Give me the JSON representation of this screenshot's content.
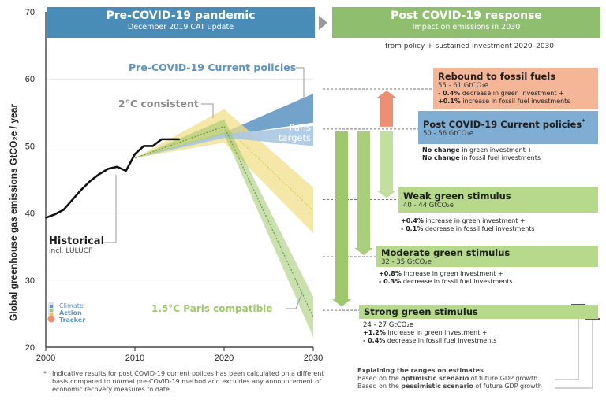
{
  "colors": {
    "header_left": "#4a8cb8",
    "header_right": "#8fbf6e",
    "historical": "#111111",
    "current_policies": "#5b93c2",
    "two_degree": "#f0df8a",
    "paris": "#9fc76d",
    "rebound_box": "#f5b597",
    "current_box": "#80aed3",
    "green_box": "#b6d98b",
    "arrow_green": "#9fc76d",
    "arrow_red": "#ee8f73"
  },
  "headers": {
    "left": {
      "title": "Pre-COVID-19 pandemic",
      "subtitle": "December 2019 CAT update"
    },
    "right": {
      "title": "Post COVID-19 response",
      "subtitle": "Impact on emissions in 2030"
    },
    "right_note": "from policy + sustained investment 2020–2030"
  },
  "labels": {
    "current_policies": "Pre-COVID-19 Current policies",
    "two_degree": "2°C consistent",
    "paris_targets_1": "Paris",
    "paris_targets_2": "targets",
    "historical": "Historical",
    "historical_sub": "incl. LULUCF",
    "paris_compatible": "1.5°C Paris compatible",
    "logo_1": "Climate",
    "logo_2": "Action",
    "logo_3": "Tracker"
  },
  "boxes": {
    "rebound": {
      "title": "Rebound to fossil fuels",
      "range": "55 - 61  GtCO₂e",
      "line1_bold": "- 0.4%",
      "line1_rest": " decrease in green investment +",
      "line2_bold": "+0.1%",
      "line2_rest": " increase in fossil fuel investments"
    },
    "current": {
      "title": "Post COVID-19 Current policies",
      "star": "*",
      "range": "50 - 56  GtCO₂e",
      "line1_bold": "No change",
      "line1_rest": " in green investment +",
      "line2_bold": "No change",
      "line2_rest": " in fossil fuel investments"
    },
    "weak": {
      "title": "Weak green stimulus",
      "range": "40 - 44  GtCO₂e",
      "line1_bold": "+0.4%",
      "line1_rest": " increase in green investment +",
      "line2_bold": "- 0.1%",
      "line2_rest": " decrease in fossil fuel investments"
    },
    "moderate": {
      "title": "Moderate green stimulus",
      "range": "32 - 35  GtCO₂e",
      "line1_bold": "+0.8%",
      "line1_rest": " increase in green investment +",
      "line2_bold": "- 0.3%",
      "line2_rest": " decrease in fossil fuel investments"
    },
    "strong": {
      "title": "Strong green stimulus",
      "range": "24 - 27  GtCO₂e",
      "line1_bold": "+1.2%",
      "line1_rest": " increase in green investment +",
      "line2_bold": "- 0.4%",
      "line2_rest": " decrease in fossil fuel investments"
    }
  },
  "legend": {
    "title": "Explaining the ranges on estimates",
    "opt_pre": "Based on the ",
    "opt_bold": "optimistic scenario",
    "opt_post": " of future GDP growth",
    "pes_pre": "Based on the ",
    "pes_bold": "pessimistic scenario",
    "pes_post": " of future GDP growth"
  },
  "footnote": {
    "star": "*",
    "text": "Indicative results for post COVID-19 current polices has been calculated on a different basis compared to normal pre-COVID-19 method and excludes any announcement of economic recovery measures to date."
  },
  "chart_data": {
    "type": "line",
    "ylabel": "Global greenhouse gas emissions  GtCO₂e / year",
    "xlim": [
      2000,
      2030
    ],
    "ylim": [
      20,
      70
    ],
    "xticks": [
      2000,
      2010,
      2020,
      2030
    ],
    "yticks": [
      20,
      30,
      40,
      50,
      60,
      70
    ],
    "series": [
      {
        "name": "Historical",
        "x": [
          2000,
          2001,
          2002,
          2003,
          2004,
          2005,
          2006,
          2007,
          2008,
          2009,
          2010,
          2011,
          2012,
          2013,
          2014,
          2015
        ],
        "y": [
          39.3,
          39.8,
          40.5,
          42.0,
          43.5,
          44.8,
          45.8,
          46.6,
          46.9,
          46.3,
          48.8,
          50.0,
          50.0,
          51.0,
          51.0,
          51.0
        ]
      }
    ],
    "ranges": [
      {
        "name": "Pre-COVID-19 Current policies",
        "x": [
          2010,
          2020,
          2030
        ],
        "low": [
          48.2,
          51.5,
          53.5
        ],
        "high": [
          48.2,
          52.0,
          57.8
        ]
      },
      {
        "name": "2°C consistent",
        "x": [
          2010,
          2020,
          2030
        ],
        "low": [
          48.2,
          50.5,
          37.0
        ],
        "high": [
          48.2,
          55.5,
          43.8
        ]
      },
      {
        "name": "Paris targets",
        "x": [
          2010,
          2020,
          2030
        ],
        "low": [
          48.2,
          51.2,
          50.0
        ],
        "high": [
          48.2,
          51.8,
          53.0
        ]
      },
      {
        "name": "1.5°C Paris compatible",
        "x": [
          2010,
          2020,
          2030
        ],
        "low": [
          48.2,
          51.8,
          21.5
        ],
        "high": [
          48.2,
          54.0,
          27.5
        ]
      }
    ],
    "post_covid_2030": [
      {
        "name": "Rebound to fossil fuels",
        "low": 55,
        "high": 61
      },
      {
        "name": "Post COVID-19 Current policies",
        "low": 50,
        "high": 56
      },
      {
        "name": "Weak green stimulus",
        "low": 40,
        "high": 44
      },
      {
        "name": "Moderate green stimulus",
        "low": 32,
        "high": 35
      },
      {
        "name": "Strong green stimulus",
        "low": 24,
        "high": 27
      }
    ]
  }
}
